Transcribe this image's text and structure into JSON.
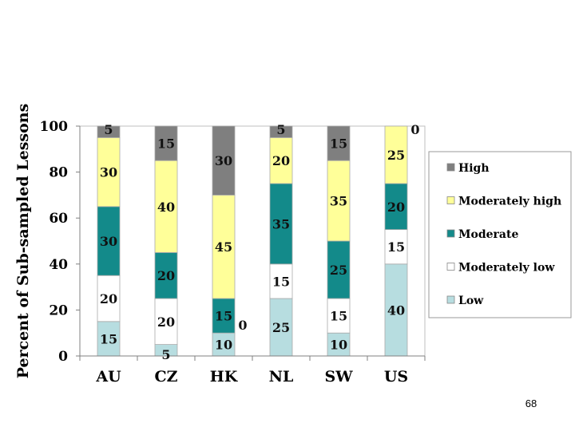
{
  "slide": {
    "page_number": "68"
  },
  "chart_data": {
    "type": "bar",
    "stacked": true,
    "title": "",
    "xlabel": "",
    "ylabel": "Percent of Sub-sampled Lessons",
    "ylim": [
      0,
      100
    ],
    "yticks": [
      "0",
      "20",
      "40",
      "60",
      "80",
      "100"
    ],
    "categories": [
      "AU",
      "CZ",
      "HK",
      "NL",
      "SW",
      "US"
    ],
    "series": [
      {
        "name": "Low",
        "color": "#b7dde0",
        "values": [
          15,
          5,
          10,
          25,
          10,
          40
        ],
        "labels": [
          "15",
          "5",
          "10",
          "25",
          "10",
          "40"
        ]
      },
      {
        "name": "Moderately low",
        "color": "#ffffff",
        "values": [
          20,
          20,
          0,
          15,
          15,
          15
        ],
        "labels": [
          "20",
          "20",
          "0",
          "15",
          "15",
          "15"
        ]
      },
      {
        "name": "Moderate",
        "color": "#138a8a",
        "values": [
          30,
          20,
          15,
          35,
          25,
          20
        ],
        "labels": [
          "30",
          "20",
          "15",
          "35",
          "25",
          "20"
        ]
      },
      {
        "name": "Moderately high",
        "color": "#ffff99",
        "values": [
          30,
          40,
          45,
          20,
          35,
          25
        ],
        "labels": [
          "30",
          "40",
          "45",
          "20",
          "35",
          "25"
        ]
      },
      {
        "name": "High",
        "color": "#7f7f7f",
        "values": [
          5,
          15,
          30,
          5,
          15,
          0
        ],
        "labels": [
          "5",
          "15",
          "30",
          "5",
          "15",
          "0"
        ]
      }
    ],
    "legend": {
      "placement": "right",
      "order": [
        "High",
        "Moderately high",
        "Moderate",
        "Moderately low",
        "Low"
      ]
    },
    "grid": false
  }
}
